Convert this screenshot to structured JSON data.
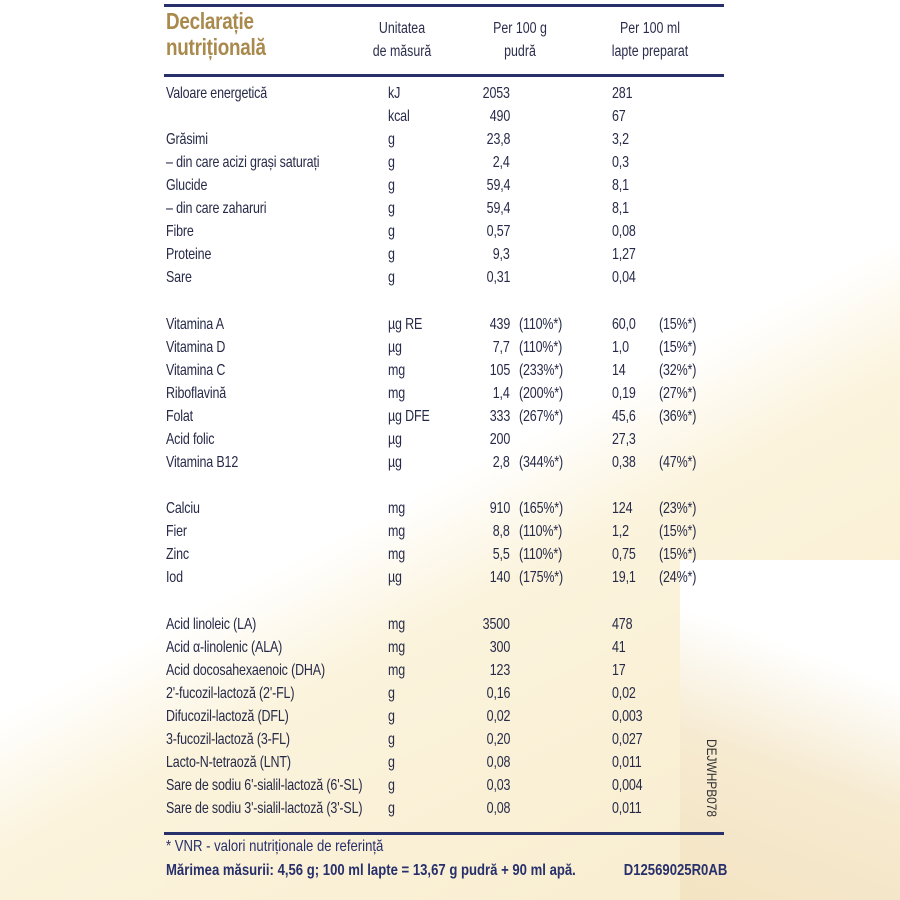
{
  "header": {
    "title_line1": "Declarație",
    "title_line2": "nutrițională",
    "col_unit": [
      "Unitatea",
      "de măsură"
    ],
    "col_per100g": [
      "Per 100 g",
      "pudră"
    ],
    "col_per100ml": [
      "Per 100 ml",
      "lapte preparat"
    ]
  },
  "colors": {
    "title": "#a98a4c",
    "rules": "#27306b",
    "text": "#262a48",
    "footer": "#27306b"
  },
  "sections": [
    [
      [
        "Valoare energetică",
        "kJ",
        "2053",
        "",
        "281",
        ""
      ],
      [
        "",
        "kcal",
        "490",
        "",
        "67",
        ""
      ],
      [
        "Grăsimi",
        "g",
        "23,8",
        "",
        "3,2",
        ""
      ],
      [
        "– din care acizi grași saturați",
        "g",
        "2,4",
        "",
        "0,3",
        ""
      ],
      [
        "Glucide",
        "g",
        "59,4",
        "",
        "8,1",
        ""
      ],
      [
        "– din care zaharuri",
        "g",
        "59,4",
        "",
        "8,1",
        ""
      ],
      [
        "Fibre",
        "g",
        "0,57",
        "",
        "0,08",
        ""
      ],
      [
        "Proteine",
        "g",
        "9,3",
        "",
        "1,27",
        ""
      ],
      [
        "Sare",
        "g",
        "0,31",
        "",
        "0,04",
        ""
      ]
    ],
    [
      [
        "Vitamina A",
        "µg RE",
        "439",
        "(110%*)",
        "60,0",
        "(15%*)"
      ],
      [
        "Vitamina D",
        "µg",
        "7,7",
        "(110%*)",
        "1,0",
        "(15%*)"
      ],
      [
        "Vitamina C",
        "mg",
        "105",
        "(233%*)",
        "14",
        "(32%*)"
      ],
      [
        "Riboflavină",
        "mg",
        "1,4",
        "(200%*)",
        "0,19",
        "(27%*)"
      ],
      [
        "Folat",
        "µg DFE",
        "333",
        "(267%*)",
        "45,6",
        "(36%*)"
      ],
      [
        "Acid folic",
        "µg",
        "200",
        "",
        "27,3",
        ""
      ],
      [
        "Vitamina B12",
        "µg",
        "2,8",
        "(344%*)",
        "0,38",
        "(47%*)"
      ]
    ],
    [
      [
        "Calciu",
        "mg",
        "910",
        "(165%*)",
        "124",
        "(23%*)"
      ],
      [
        "Fier",
        "mg",
        "8,8",
        "(110%*)",
        "1,2",
        "(15%*)"
      ],
      [
        "Zinc",
        "mg",
        "5,5",
        "(110%*)",
        "0,75",
        "(15%*)"
      ],
      [
        "Iod",
        "µg",
        "140",
        "(175%*)",
        "19,1",
        "(24%*)"
      ]
    ],
    [
      [
        "Acid linoleic (LA)",
        "mg",
        "3500",
        "",
        "478",
        ""
      ],
      [
        "Acid α-linolenic (ALA)",
        "mg",
        "300",
        "",
        "41",
        ""
      ],
      [
        "Acid docosahexaenoic (DHA)",
        "mg",
        "123",
        "",
        "17",
        ""
      ],
      [
        "2'-fucozil-lactoză (2'-FL)",
        "g",
        "0,16",
        "",
        "0,02",
        ""
      ],
      [
        "Difucozil-lactoză (DFL)",
        "g",
        "0,02",
        "",
        "0,003",
        ""
      ],
      [
        "3-fucozil-lactoză (3-FL)",
        "g",
        "0,20",
        "",
        "0,027",
        ""
      ],
      [
        "Lacto-N-tetraoză (LNT)",
        "g",
        "0,08",
        "",
        "0,011",
        ""
      ],
      [
        "Sare de sodiu 6'-sialil-lactoză (6'-SL)",
        "g",
        "0,03",
        "",
        "0,004",
        ""
      ],
      [
        "Sare de sodiu 3'-sialil-lactoză (3'-SL)",
        "g",
        "0,08",
        "",
        "0,011",
        ""
      ]
    ]
  ],
  "side_code": "DEJWHPB078",
  "footer": {
    "note": "* VNR - valori nutriționale de referință",
    "serving": "Mărimea măsurii: 4,56 g; 100 ml lapte = 13,67 g pudră + 90 ml apă.",
    "code": "D12569025R0AB"
  }
}
